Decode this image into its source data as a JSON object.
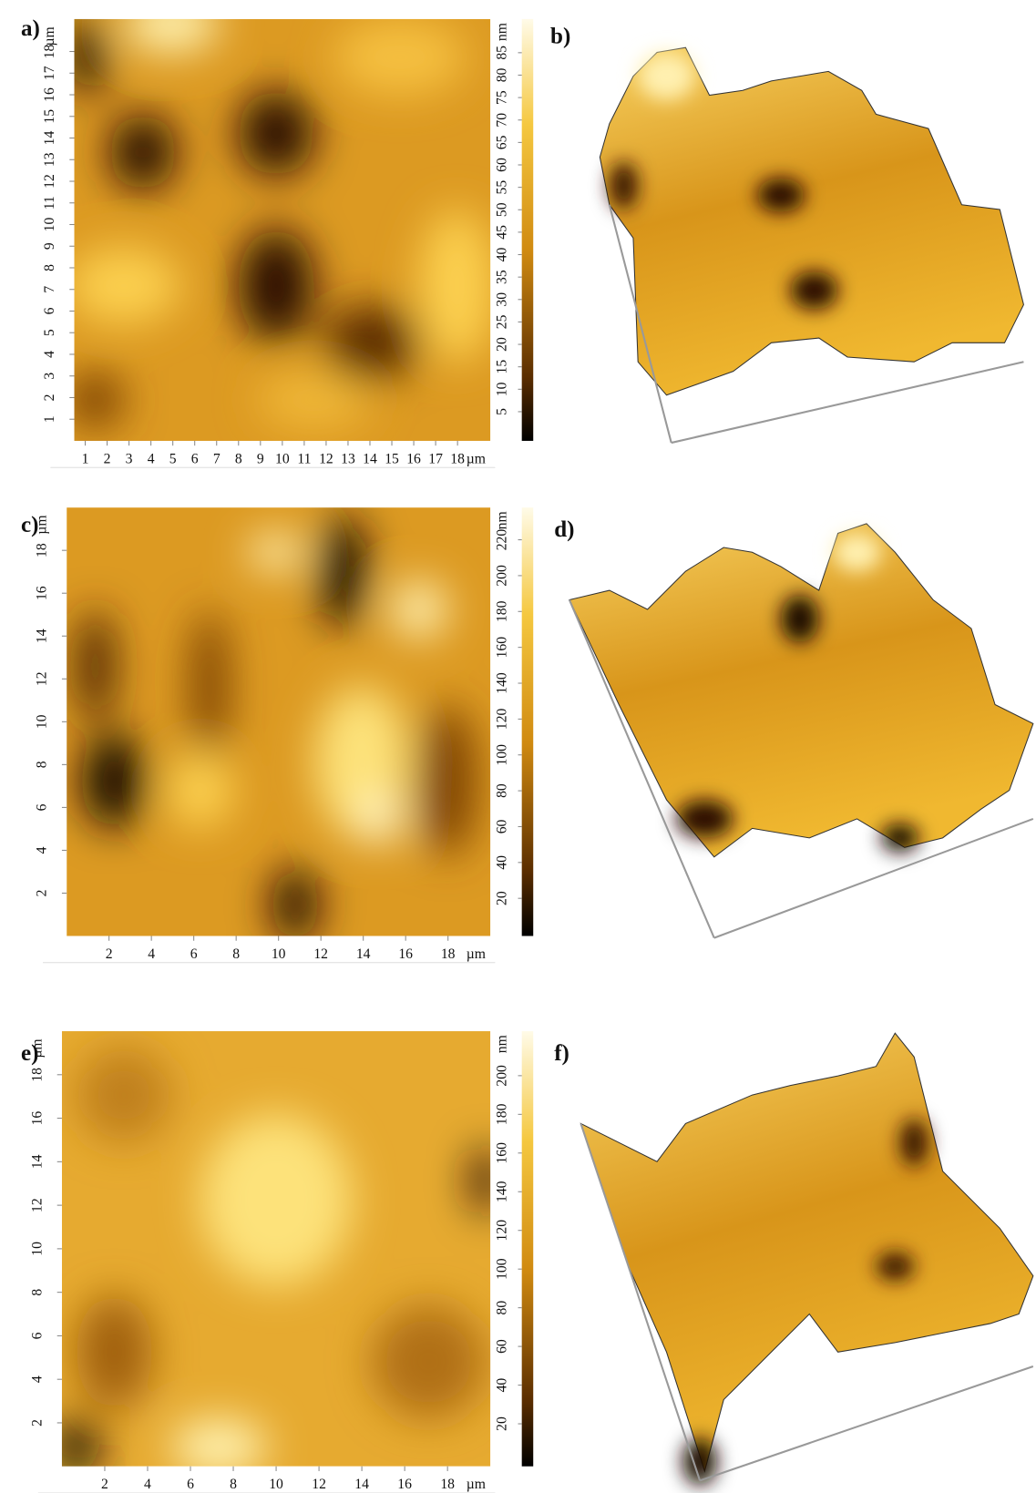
{
  "panels": [
    {
      "label": "a)",
      "x_unit": "µm",
      "y_unit": "µm",
      "colorbar_unit": "nm",
      "xticks": [
        1,
        2,
        3,
        4,
        5,
        6,
        7,
        8,
        9,
        10,
        11,
        12,
        13,
        14,
        15,
        16,
        17,
        18
      ],
      "xlim": [
        0.5,
        19.5
      ],
      "yticks": [
        1,
        2,
        3,
        4,
        5,
        6,
        7,
        8,
        9,
        10,
        11,
        12,
        13,
        14,
        15,
        16,
        17,
        18
      ],
      "ylim": [
        0,
        19.5
      ],
      "colorbar_ticks": [
        5,
        10,
        15,
        20,
        25,
        30,
        35,
        40,
        45,
        50,
        55,
        60,
        65,
        70,
        75,
        80,
        85
      ],
      "colorbar_lim": [
        -1.5,
        92.5
      ]
    },
    {
      "label": "b)"
    },
    {
      "label": "c)",
      "x_unit": "µm",
      "y_unit": "µm",
      "colorbar_unit": "nm",
      "xticks": [
        2,
        4,
        6,
        8,
        10,
        12,
        14,
        16,
        18
      ],
      "xlim": [
        0,
        20
      ],
      "yticks": [
        2,
        4,
        6,
        8,
        10,
        12,
        14,
        16,
        18
      ],
      "ylim": [
        0,
        20
      ],
      "colorbar_ticks": [
        20,
        40,
        60,
        80,
        100,
        120,
        140,
        160,
        180,
        200,
        220
      ],
      "colorbar_lim": [
        -1,
        238
      ]
    },
    {
      "label": "d)"
    },
    {
      "label": "e)",
      "x_unit": "µm",
      "y_unit": "µm",
      "colorbar_unit": "nm",
      "xticks": [
        2,
        4,
        6,
        8,
        10,
        12,
        14,
        16,
        18
      ],
      "xlim": [
        0,
        20
      ],
      "yticks": [
        2,
        4,
        6,
        8,
        10,
        12,
        14,
        16,
        18
      ],
      "ylim": [
        0,
        20
      ],
      "colorbar_ticks": [
        20,
        40,
        60,
        80,
        100,
        120,
        140,
        160,
        180,
        200
      ],
      "colorbar_lim": [
        -2,
        223
      ]
    },
    {
      "label": "f)"
    }
  ]
}
